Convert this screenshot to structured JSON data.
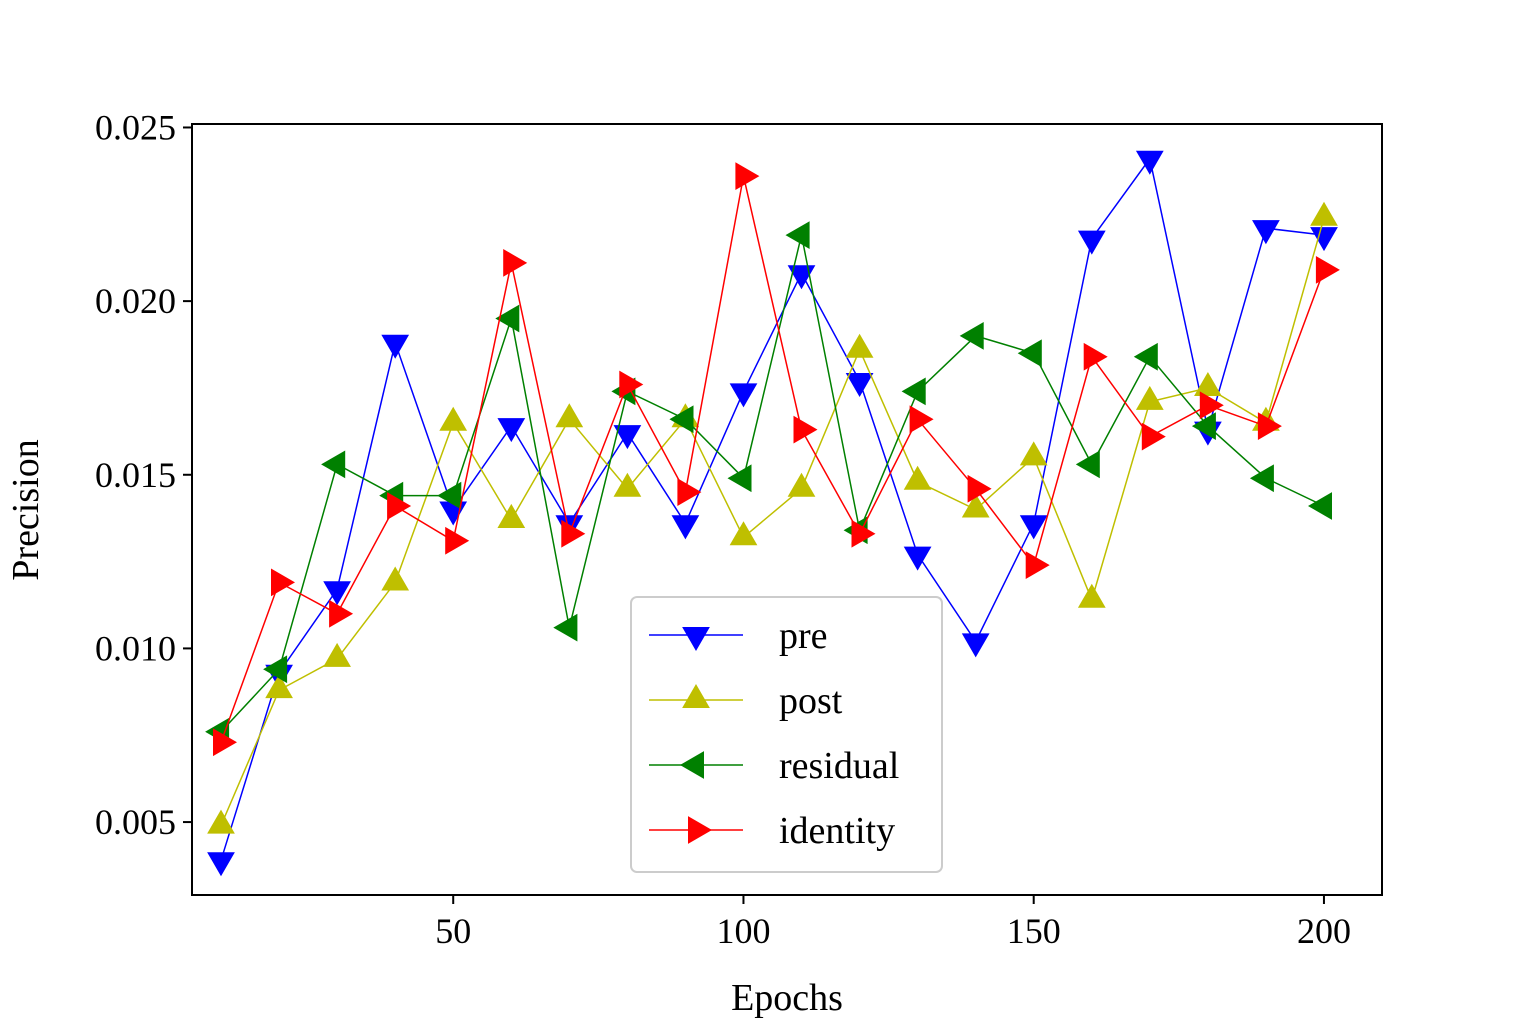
{
  "chart_data": {
    "type": "line",
    "xlabel": "Epochs",
    "ylabel": "Precision",
    "xlim": [
      5,
      210
    ],
    "ylim": [
      0.0029,
      0.0251
    ],
    "x_ticks": [
      50,
      100,
      150,
      200
    ],
    "y_ticks": [
      0.005,
      0.01,
      0.015,
      0.02,
      0.025
    ],
    "x_tick_labels": [
      "50",
      "100",
      "150",
      "200"
    ],
    "y_tick_labels": [
      "0.005",
      "0.010",
      "0.015",
      "0.020",
      "0.025"
    ],
    "grid": false,
    "legend_position": "lower-center",
    "x": [
      10,
      20,
      30,
      40,
      50,
      60,
      70,
      80,
      90,
      100,
      110,
      120,
      130,
      140,
      150,
      160,
      170,
      180,
      190,
      200
    ],
    "series": [
      {
        "name": "pre",
        "color": "#0000ff",
        "marker": "triangle-down",
        "values": [
          0.0039,
          0.0093,
          0.0117,
          0.0188,
          0.014,
          0.0164,
          0.0136,
          0.0162,
          0.0136,
          0.0174,
          0.0208,
          0.0177,
          0.0127,
          0.0102,
          0.0136,
          0.0218,
          0.0241,
          0.0163,
          0.0221,
          0.0219
        ]
      },
      {
        "name": "post",
        "color": "#bfbf00",
        "marker": "triangle-up",
        "values": [
          0.0049,
          0.0088,
          0.0097,
          0.0119,
          0.0165,
          0.0137,
          0.0166,
          0.0146,
          0.0166,
          0.0132,
          0.0146,
          0.0186,
          0.0148,
          0.014,
          0.0155,
          0.0114,
          0.0171,
          0.0175,
          0.0165,
          0.0224
        ]
      },
      {
        "name": "residual",
        "color": "#008000",
        "marker": "triangle-left",
        "values": [
          0.0076,
          0.0094,
          0.0153,
          0.0144,
          0.0144,
          0.0195,
          0.0106,
          0.0174,
          0.0166,
          0.0149,
          0.0219,
          0.0134,
          0.0174,
          0.019,
          0.0185,
          0.0153,
          0.0184,
          0.0164,
          0.0149,
          0.0141
        ]
      },
      {
        "name": "identity",
        "color": "#ff0000",
        "marker": "triangle-right",
        "values": [
          0.0073,
          0.0119,
          0.011,
          0.0141,
          0.0131,
          0.0211,
          0.0133,
          0.0176,
          0.0145,
          0.0236,
          0.0163,
          0.0133,
          0.0166,
          0.0146,
          0.0124,
          0.0184,
          0.0161,
          0.017,
          0.0164,
          0.0209
        ]
      }
    ]
  }
}
